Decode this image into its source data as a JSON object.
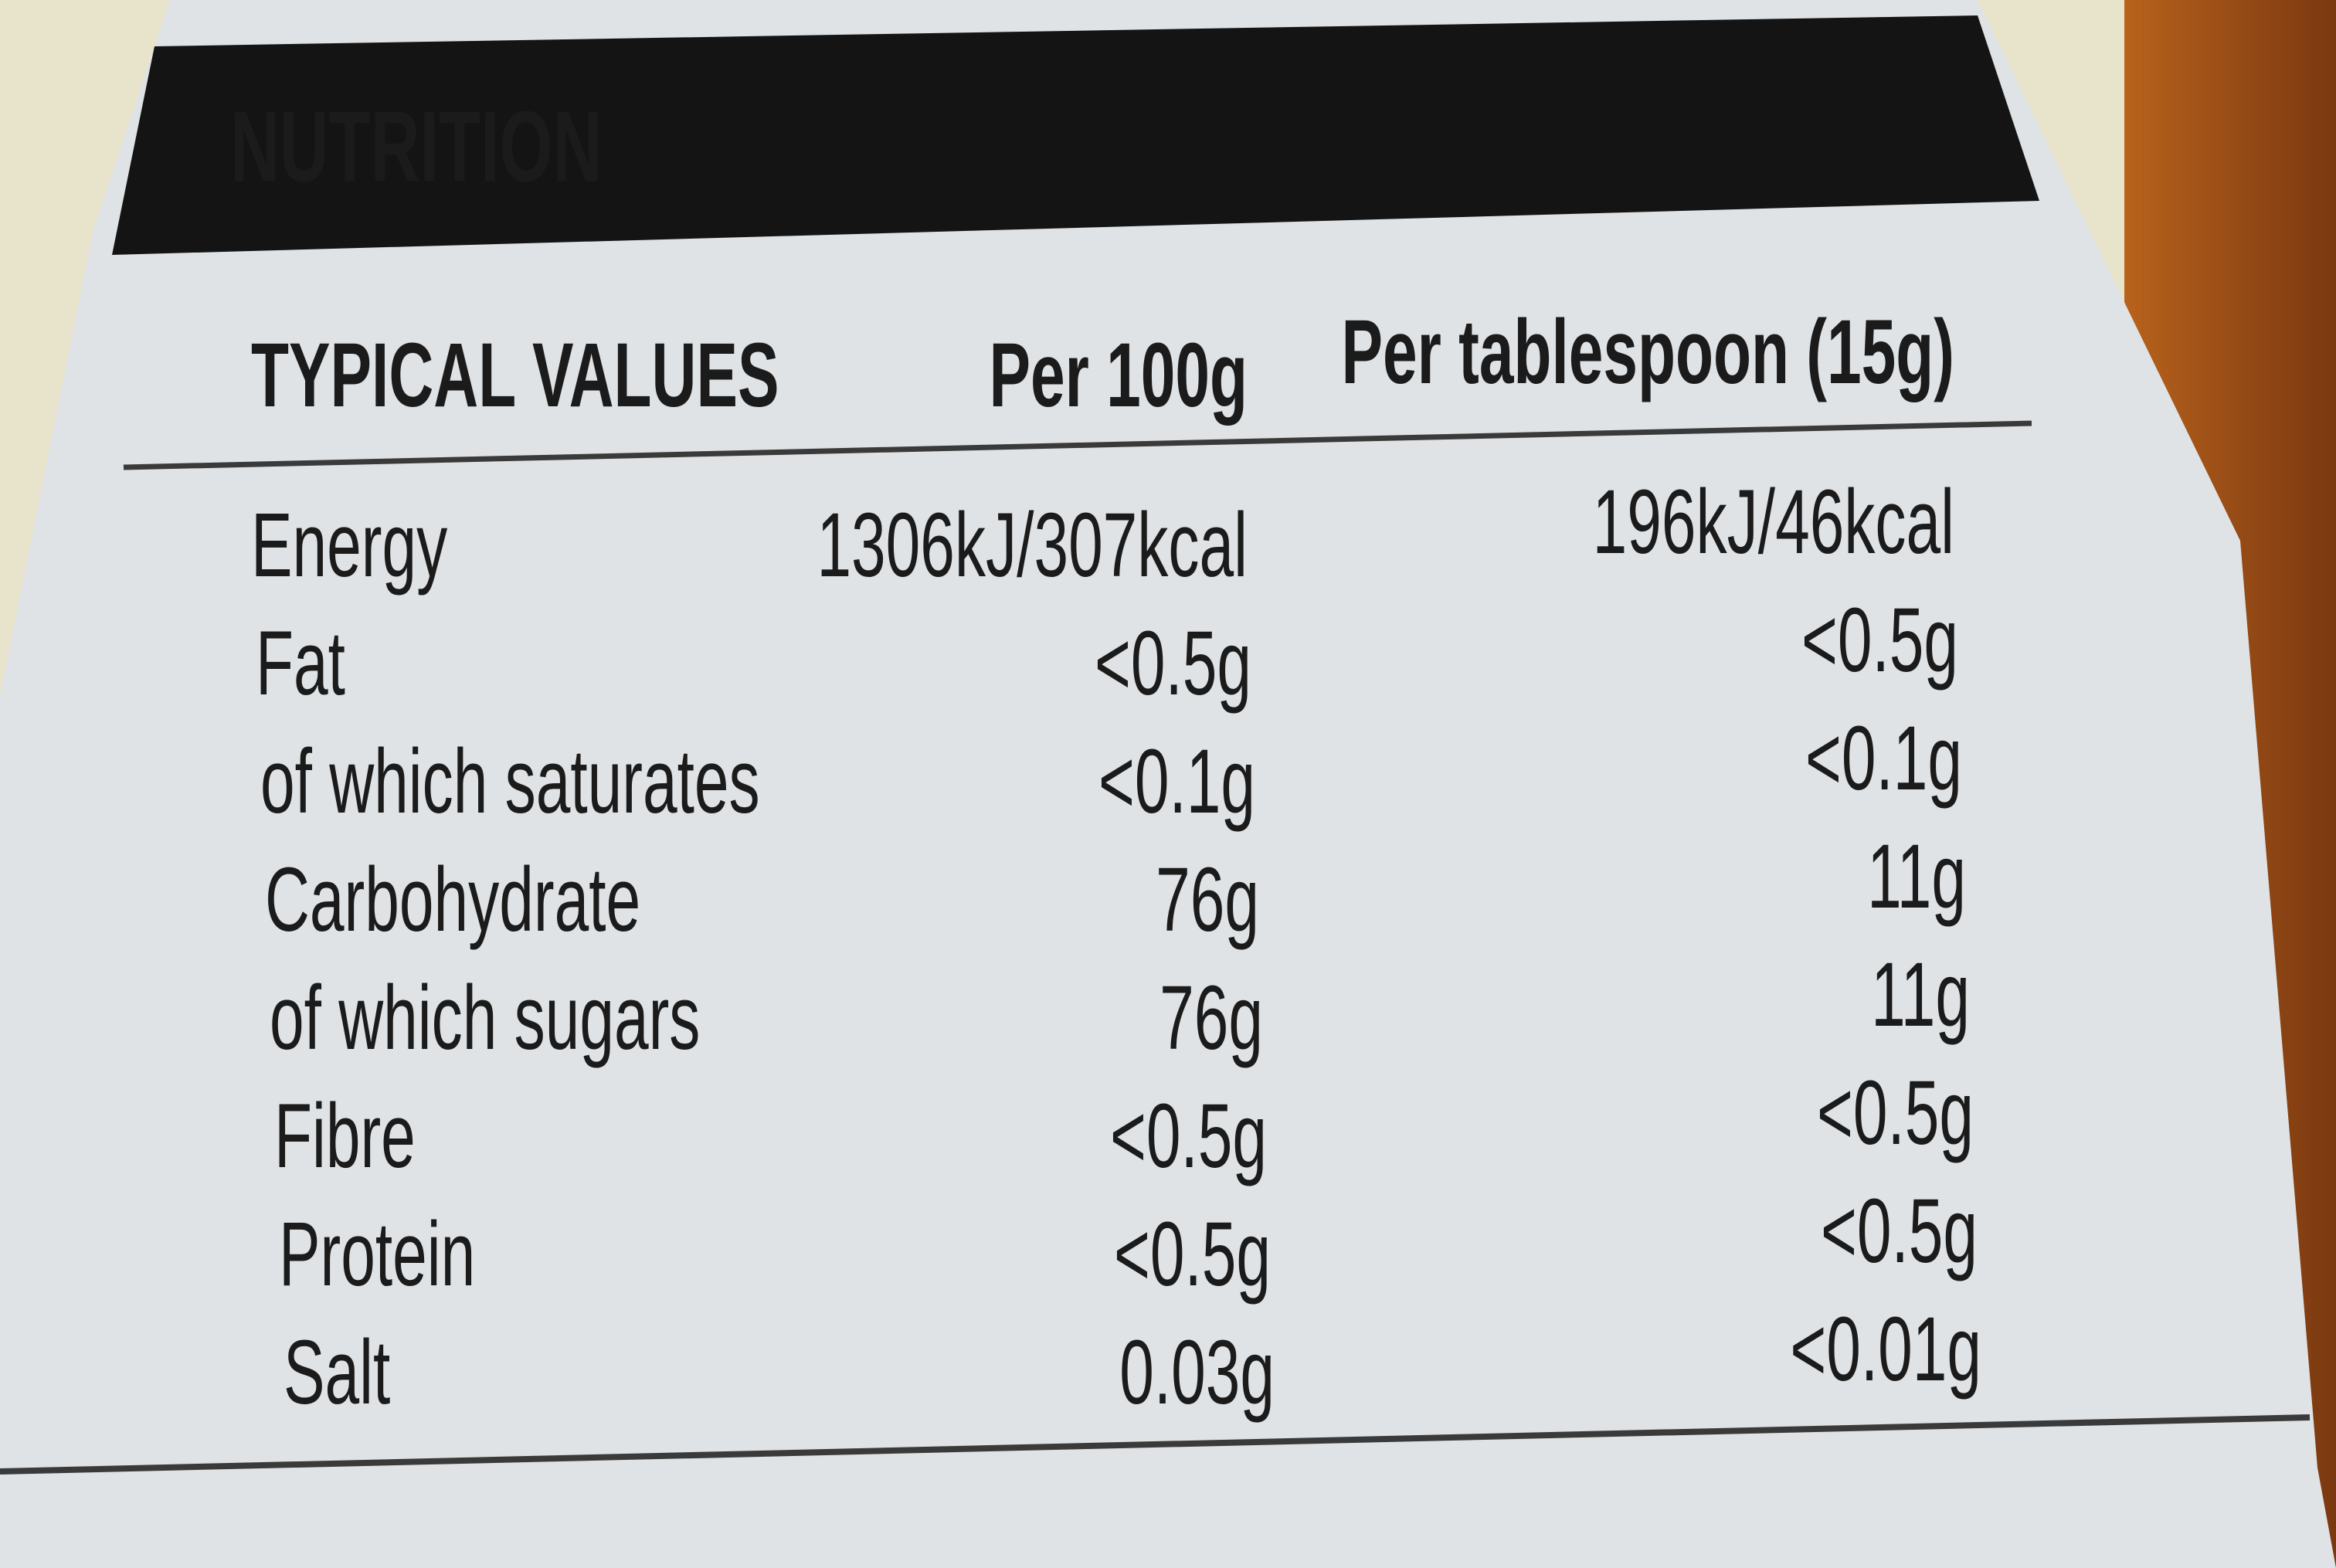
{
  "header": {
    "title": "NUTRITION"
  },
  "table": {
    "columns": [
      "TYPICAL VALUES",
      "Per 100g",
      "Per tablespoon (15g)"
    ],
    "rows": [
      [
        "Energy",
        "1306kJ/307kcal",
        "196kJ/46kcal"
      ],
      [
        "Fat",
        "<0.5g",
        "<0.5g"
      ],
      [
        "of which saturates",
        "<0.1g",
        "<0.1g"
      ],
      [
        "Carbohydrate",
        "76g",
        "11g"
      ],
      [
        "of which sugars",
        "76g",
        "11g"
      ],
      [
        "Fibre",
        "<0.5g",
        "<0.5g"
      ],
      [
        "Protein",
        "<0.5g",
        "<0.5g"
      ],
      [
        "Salt",
        "0.03g",
        "<0.01g"
      ]
    ]
  }
}
